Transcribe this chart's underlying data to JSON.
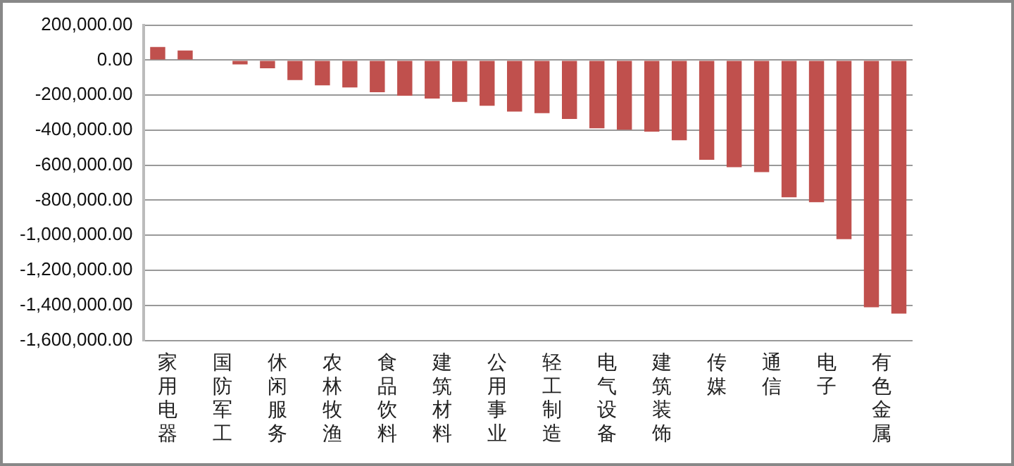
{
  "chart_data": {
    "type": "bar",
    "categories": [
      "家用电器",
      null,
      "国防军工",
      null,
      "休闲服务",
      null,
      "农林牧渔",
      null,
      "食品饮料",
      null,
      "建筑材料",
      null,
      "公用事业",
      null,
      "轻工制造",
      null,
      "电气设备",
      null,
      "建筑装饰",
      null,
      "传媒",
      null,
      "通信",
      null,
      "电子",
      null,
      "有色金属",
      null
    ],
    "values": [
      75000,
      55000,
      0,
      -25000,
      -47000,
      -114000,
      -144000,
      -156000,
      -183000,
      -203000,
      -219000,
      -239000,
      -261000,
      -294000,
      -303000,
      -336000,
      -389000,
      -397000,
      -408000,
      -458000,
      -569000,
      -611000,
      -639000,
      -783000,
      -811000,
      -1022000,
      -1411000,
      -1447000
    ],
    "color": "#c0504d",
    "ylim": [
      -1600000,
      200000
    ],
    "yticks": [
      {
        "value": 200000,
        "label": "200,000.00"
      },
      {
        "value": 0,
        "label": "0.00"
      },
      {
        "value": -200000,
        "label": "-200,000.00"
      },
      {
        "value": -400000,
        "label": "-400,000.00"
      },
      {
        "value": -600000,
        "label": "-600,000.00"
      },
      {
        "value": -800000,
        "label": "-800,000.00"
      },
      {
        "value": -1000000,
        "label": "-1,000,000.00"
      },
      {
        "value": -1200000,
        "label": "-1,200,000.00"
      },
      {
        "value": -1400000,
        "label": "-1,400,000.00"
      },
      {
        "value": -1600000,
        "label": "-1,600,000.00"
      }
    ],
    "grid": "y"
  }
}
